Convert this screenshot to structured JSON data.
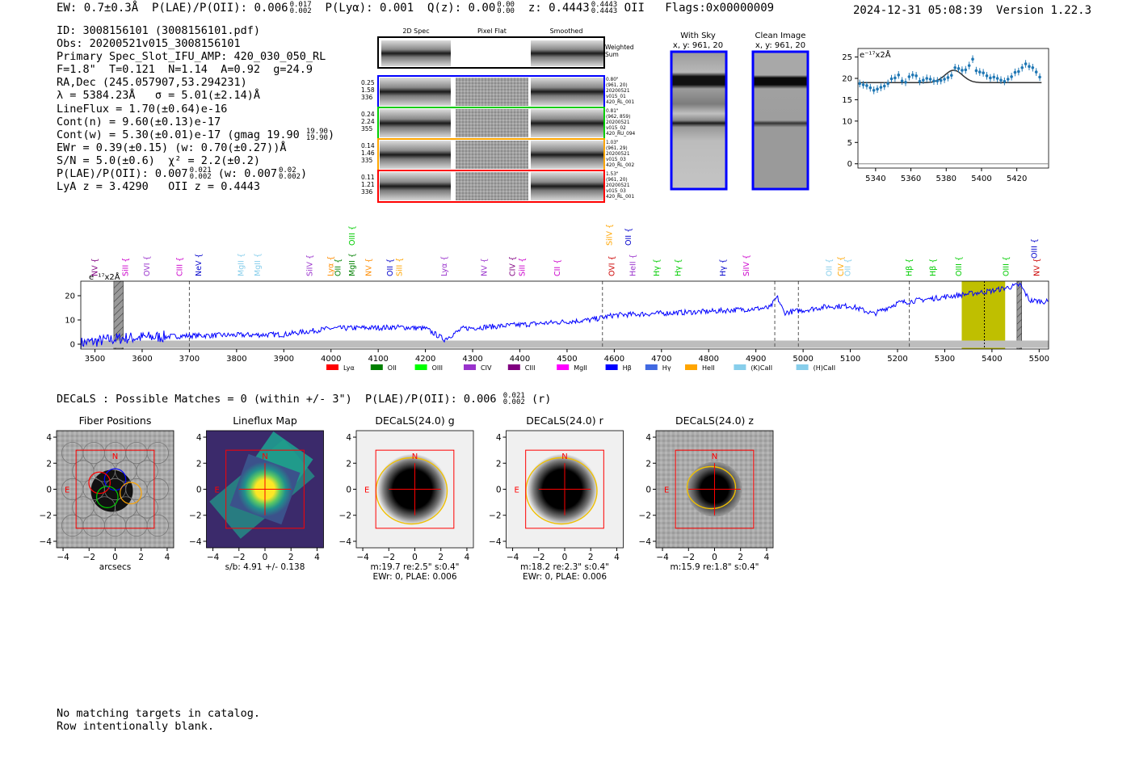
{
  "header": {
    "ew": "EW: 0.7±0.3Å",
    "plae": "P(LAE)/P(OII): 0.006",
    "plae_hi": "0.017",
    "plae_lo": "0.002",
    "plya": "P(Lyα): 0.001",
    "qz": "Q(z): 0.00",
    "qz_hi": "0.00",
    "qz_lo": "0.00",
    "z": "z: 0.4443",
    "z_hi": "0.4443",
    "z_lo": "0.4443",
    "z_line": "OII",
    "flags": "Flags:0x00000009",
    "datetime": "2024-12-31 05:08:39",
    "version": "Version 1.22.3"
  },
  "info": {
    "line1": "ID: 3008156101 (3008156101.pdf)",
    "line2": "Obs: 20200521v015_3008156101",
    "line3": "Primary Spec_Slot_IFU_AMP: 420_030_050_RL",
    "line4": "F=1.8\"  T=0.121  N=1.14  A=0.92  g=24.9",
    "line5": "RA,Dec (245.057907,53.294231)",
    "line6": "λ = 5384.23Å   σ = 5.01(±2.14)Å",
    "line7": "LineFlux = 1.70(±0.64)e-16",
    "line8": "Cont(n) = 9.60(±0.13)e-17",
    "line9": "Cont(w) = 5.30(±0.01)e-17 (gmag 19.90",
    "line9_hi": "19.90",
    "line9_lo": "19.90",
    "line10": "EWr = 0.39(±0.15) (w: 0.70(±0.27))Å",
    "line11": "S/N = 5.0(±0.6)  χ² = 2.2(±0.2)",
    "line12a": "P(LAE)/P(OII): 0.007",
    "line12a_hi": "0.021",
    "line12a_lo": "0.002",
    "line12b": "(w: 0.007",
    "line12b_hi": "0.02",
    "line12b_lo": "0.002",
    "line13": "LyA z = 3.4290   OII z = 0.4443"
  },
  "cutouts": {
    "col_2d": "2D Spec",
    "col_flat": "Pixel Flat",
    "col_smooth": "Smoothed",
    "weighted": "Weighted",
    "sum": "Sum",
    "rows": [
      {
        "n1": "0.25",
        "n2": "1.58",
        "n3": "336",
        "color": "#0000ff",
        "r1": "0.80\"",
        "r2": "(961, 20)",
        "r3": "20200521",
        "r4": "v015_01",
        "r5": "420_RL_001"
      },
      {
        "n1": "0.24",
        "n2": "2.24",
        "n3": "355",
        "color": "#00cc00",
        "r1": "0.81\"",
        "r2": "(962, 859)",
        "r3": "20200521",
        "r4": "v015_02",
        "r5": "420_RU_094"
      },
      {
        "n1": "0.14",
        "n2": "1.46",
        "n3": "335",
        "color": "#ffa500",
        "r1": "1.03\"",
        "r2": "(961, 29)",
        "r3": "20200521",
        "r4": "v015_03",
        "r5": "420_RL_002"
      },
      {
        "n1": "0.11",
        "n2": "1.21",
        "n3": "336",
        "color": "#ff0000",
        "r1": "1.53\"",
        "r2": "(961, 20)",
        "r3": "20200521",
        "r4": "v015_03",
        "r5": "420_RL_001"
      }
    ]
  },
  "sky": {
    "with_sky": "With Sky",
    "with_sky_xy": "x, y: 961, 20",
    "clean": "Clean Image",
    "clean_xy": "x, y: 961, 20"
  },
  "colors": {
    "accent": "#0000ff",
    "fit": "#1f77b4",
    "band": "#bfbf00",
    "red": "#ff0000"
  },
  "chart_data": [
    {
      "type": "scatter",
      "title": "",
      "ylabel": "e⁻¹⁷x2Å",
      "xlim": [
        5330,
        5438
      ],
      "ylim": [
        -1,
        27
      ],
      "xticks": [
        5340,
        5360,
        5380,
        5400,
        5420
      ],
      "yticks": [
        0,
        5,
        10,
        15,
        20,
        25
      ],
      "x": [
        5331,
        5333,
        5335,
        5337,
        5339,
        5341,
        5343,
        5345,
        5347,
        5349,
        5351,
        5353,
        5355,
        5357,
        5359,
        5361,
        5363,
        5365,
        5367,
        5369,
        5371,
        5373,
        5375,
        5377,
        5379,
        5381,
        5383,
        5385,
        5387,
        5389,
        5391,
        5393,
        5395,
        5397,
        5399,
        5401,
        5403,
        5405,
        5407,
        5409,
        5411,
        5413,
        5415,
        5417,
        5419,
        5421,
        5423,
        5425,
        5427,
        5429,
        5431,
        5433
      ],
      "y": [
        18.8,
        18.5,
        18.3,
        17.8,
        17.2,
        17.5,
        17.9,
        18.2,
        18.8,
        19.9,
        20.1,
        20.8,
        19.4,
        19.1,
        20.4,
        20.8,
        20.6,
        19.3,
        19.6,
        20.0,
        19.8,
        19.4,
        19.4,
        19.5,
        19.8,
        20.2,
        20.7,
        22.5,
        22.3,
        21.9,
        22.0,
        23.0,
        24.5,
        21.8,
        21.5,
        21.3,
        20.6,
        20.1,
        20.3,
        20.0,
        19.6,
        19.3,
        19.8,
        20.4,
        21.4,
        21.6,
        22.5,
        23.4,
        22.8,
        22.5,
        21.5,
        20.3
      ],
      "fit_baseline": 19.0,
      "fit_amplitude": 2.9,
      "fit_center": 5384.23,
      "fit_sigma": 5.01
    },
    {
      "type": "line",
      "ylabel": "e⁻¹⁷x2Å",
      "xlim": [
        3470,
        5520
      ],
      "ylim": [
        -2,
        26
      ],
      "xticks": [
        3500,
        3600,
        3700,
        3800,
        3900,
        4000,
        4100,
        4200,
        4300,
        4400,
        4500,
        4600,
        4700,
        4800,
        4900,
        5000,
        5100,
        5200,
        5300,
        5400,
        5500
      ],
      "yticks": [
        0,
        10,
        20
      ],
      "spectrum_anchors": [
        [
          3470,
          0.5
        ],
        [
          3560,
          2.5
        ],
        [
          3700,
          3.5
        ],
        [
          3900,
          4.0
        ],
        [
          4000,
          6.5
        ],
        [
          4150,
          7.0
        ],
        [
          4200,
          6.5
        ],
        [
          4240,
          2.0
        ],
        [
          4280,
          6.5
        ],
        [
          4400,
          8.0
        ],
        [
          4550,
          10.0
        ],
        [
          4600,
          12.0
        ],
        [
          4800,
          13.5
        ],
        [
          4930,
          15.0
        ],
        [
          4945,
          19.5
        ],
        [
          4960,
          13.0
        ],
        [
          5000,
          14.0
        ],
        [
          5050,
          15.5
        ],
        [
          5100,
          15.8
        ],
        [
          5150,
          12.5
        ],
        [
          5200,
          17.0
        ],
        [
          5300,
          19.5
        ],
        [
          5400,
          22.0
        ],
        [
          5460,
          24.5
        ],
        [
          5480,
          18.0
        ],
        [
          5520,
          17.5
        ]
      ],
      "highlight_band": [
        5336,
        5428
      ],
      "marked_line": 5384,
      "masked_regions": [
        [
          3540,
          3560
        ],
        [
          5453,
          5463
        ]
      ],
      "dashed_lines": [
        3700,
        4575,
        4940,
        4990,
        5225
      ],
      "line_labels": [
        {
          "label": "NV",
          "x": 3500,
          "color": "#800080",
          "row": 2
        },
        {
          "label": "SiII",
          "x": 3565,
          "color": "#cc00cc",
          "row": 2
        },
        {
          "label": "OVI",
          "x": 3610,
          "color": "#9932cc",
          "row": 2
        },
        {
          "label": "CIII",
          "x": 3680,
          "color": "#cc00cc",
          "row": 2
        },
        {
          "label": "NeV",
          "x": 3720,
          "color": "#0000cc",
          "row": 2
        },
        {
          "label": "MgII",
          "x": 3810,
          "color": "#87ceeb",
          "row": 2
        },
        {
          "label": "MgII",
          "x": 3845,
          "color": "#87ceeb",
          "row": 2
        },
        {
          "label": "SiIV",
          "x": 3955,
          "color": "#9932cc",
          "row": 2
        },
        {
          "label": "Lyα",
          "x": 4000,
          "color": "#ff8c00",
          "row": 2
        },
        {
          "label": "OII",
          "x": 4015,
          "color": "#008000",
          "row": 2
        },
        {
          "label": "MgII",
          "x": 4045,
          "color": "#008000",
          "row": 2
        },
        {
          "label": "OIII",
          "x": 4045,
          "color": "#00cc00",
          "row": 0
        },
        {
          "label": "NV",
          "x": 4080,
          "color": "#ff8c00",
          "row": 2
        },
        {
          "label": "OII",
          "x": 4125,
          "color": "#0000cc",
          "row": 2
        },
        {
          "label": "SiII",
          "x": 4145,
          "color": "#ffa500",
          "row": 2
        },
        {
          "label": "Lyα",
          "x": 4240,
          "color": "#9932cc",
          "row": 2
        },
        {
          "label": "NV",
          "x": 4325,
          "color": "#9932cc",
          "row": 2
        },
        {
          "label": "CIV",
          "x": 4385,
          "color": "#800080",
          "row": 2
        },
        {
          "label": "SiII",
          "x": 4405,
          "color": "#cc00cc",
          "row": 2
        },
        {
          "label": "CII",
          "x": 4480,
          "color": "#cc00cc",
          "row": 2
        },
        {
          "label": "SiIV",
          "x": 4590,
          "color": "#ffa500",
          "row": 0
        },
        {
          "label": "OII",
          "x": 4630,
          "color": "#0000cc",
          "row": 0
        },
        {
          "label": "OVI",
          "x": 4595,
          "color": "#cc0000",
          "row": 2
        },
        {
          "label": "HeII",
          "x": 4640,
          "color": "#9932cc",
          "row": 2
        },
        {
          "label": "Hγ",
          "x": 4690,
          "color": "#00cc00",
          "row": 2
        },
        {
          "label": "Hγ",
          "x": 4735,
          "color": "#00cc00",
          "row": 2
        },
        {
          "label": "Hγ",
          "x": 4830,
          "color": "#0000cc",
          "row": 2
        },
        {
          "label": "SiIV",
          "x": 4880,
          "color": "#cc00cc",
          "row": 2
        },
        {
          "label": "OII",
          "x": 5055,
          "color": "#87ceeb",
          "row": 2
        },
        {
          "label": "CIV",
          "x": 5080,
          "color": "#ffa500",
          "row": 2
        },
        {
          "label": "OII",
          "x": 5095,
          "color": "#87ceeb",
          "row": 2
        },
        {
          "label": "Hβ",
          "x": 5225,
          "color": "#00cc00",
          "row": 2
        },
        {
          "label": "Hβ",
          "x": 5275,
          "color": "#00cc00",
          "row": 2
        },
        {
          "label": "OIII",
          "x": 5330,
          "color": "#00cc00",
          "row": 2
        },
        {
          "label": "OIII",
          "x": 5430,
          "color": "#00cc00",
          "row": 2
        },
        {
          "label": "OIII",
          "x": 5490,
          "color": "#0000cc",
          "row": 1
        },
        {
          "label": "NV",
          "x": 5495,
          "color": "#cc0000",
          "row": 2
        }
      ],
      "legend": [
        {
          "label": "Lyα",
          "color": "#ff0000"
        },
        {
          "label": "OII",
          "color": "#008000"
        },
        {
          "label": "OIII",
          "color": "#00ff00"
        },
        {
          "label": "CIV",
          "color": "#9932cc"
        },
        {
          "label": "CIII",
          "color": "#800080"
        },
        {
          "label": "MgII",
          "color": "#ff00ff"
        },
        {
          "label": "Hβ",
          "color": "#0000ff"
        },
        {
          "label": "Hγ",
          "color": "#4169e1"
        },
        {
          "label": "HeII",
          "color": "#ffa500"
        },
        {
          "label": "(K)CaII",
          "color": "#87ceeb"
        },
        {
          "label": "(H)CaII",
          "color": "#87ceeb"
        }
      ]
    }
  ],
  "decals": {
    "line": "DECaLS : Possible Matches = 0 (within +/- 3\")  P(LAE)/P(OII): 0.006",
    "hi": "0.021",
    "lo": "0.002",
    "band": "(r)"
  },
  "panels": [
    {
      "title": "Fiber Positions",
      "cap1": "arcsecs",
      "cap2": "",
      "kind": "fiber"
    },
    {
      "title": "Lineflux Map",
      "cap1": "s/b: 4.91 +/- 0.138",
      "cap2": "",
      "kind": "lineflux"
    },
    {
      "title": "DECaLS(24.0) g",
      "cap1": "m:19.7  re:2.5\"  s:0.4\"",
      "cap2": "EWr: 0, PLAE: 0.006",
      "kind": "decals"
    },
    {
      "title": "DECaLS(24.0) r",
      "cap1": "m:18.2  re:2.3\"  s:0.4\"",
      "cap2": "EWr: 0, PLAE: 0.006",
      "kind": "decals"
    },
    {
      "title": "DECaLS(24.0) z",
      "cap1": "m:15.9  re:1.8\"  s:0.4\"",
      "cap2": "",
      "kind": "decalsz"
    }
  ],
  "panel_axis": {
    "ticks": [
      "−4",
      "−2",
      "0",
      "2",
      "4"
    ],
    "north": "N",
    "east": "E"
  },
  "footer": {
    "line1": "No matching targets in catalog.",
    "line2": "Row intentionally blank."
  }
}
